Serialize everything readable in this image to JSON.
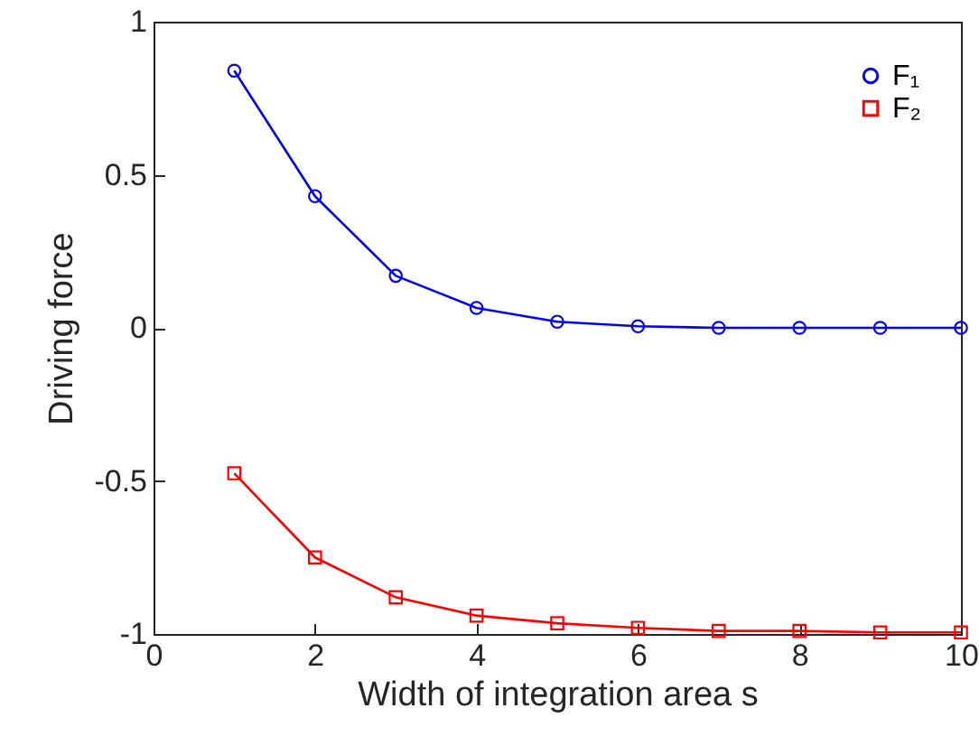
{
  "chart_data": {
    "type": "line",
    "xlabel": "Width of integration area s",
    "ylabel": "Driving force",
    "x": [
      1,
      2,
      3,
      4,
      5,
      6,
      7,
      8,
      9,
      10
    ],
    "series": [
      {
        "name": "F₁",
        "color": "#0000ff",
        "marker": "circle",
        "values": [
          0.84,
          0.43,
          0.17,
          0.065,
          0.02,
          0.005,
          0,
          0,
          0,
          0
        ]
      },
      {
        "name": "F₂",
        "color": "#ff0000",
        "marker": "square",
        "values": [
          -0.475,
          -0.75,
          -0.88,
          -0.94,
          -0.965,
          -0.98,
          -0.99,
          -0.99,
          -0.995,
          -0.995
        ]
      }
    ],
    "xlim": [
      0,
      10
    ],
    "xticks": [
      0,
      2,
      4,
      6,
      8,
      10
    ],
    "ylim": [
      -1,
      1
    ],
    "yticks": [
      -1,
      -0.5,
      0,
      0.5,
      1
    ],
    "legend": "top right",
    "grid": false
  }
}
